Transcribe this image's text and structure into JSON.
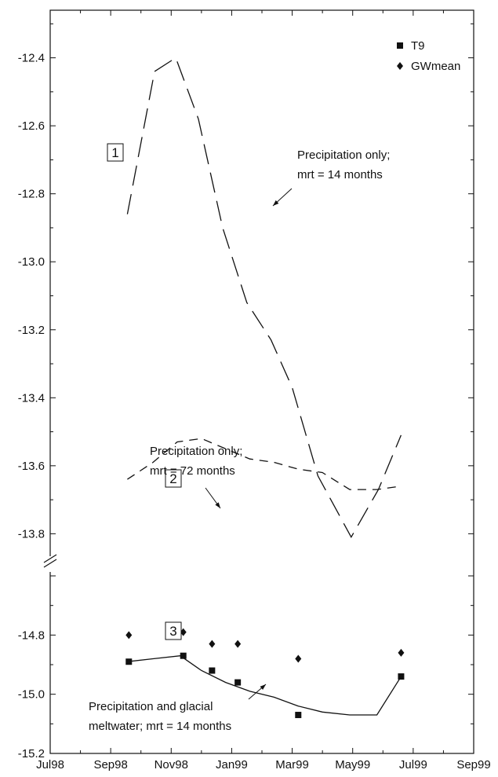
{
  "chart_data": {
    "type": "line",
    "xlabel": "",
    "ylabel": "",
    "grid": false,
    "legend_position": "top-right",
    "x_ticks": [
      "Jul98",
      "Sep98",
      "Nov98",
      "Jan99",
      "Mar99",
      "May99",
      "Jul99",
      "Sep99"
    ],
    "y_ticks_upper": [
      "-12.4",
      "-12.6",
      "-12.8",
      "-13.0",
      "-13.2",
      "-13.4",
      "-13.6",
      "-13.8"
    ],
    "y_ticks_lower": [
      "-14.8",
      "-15.0",
      "-15.2"
    ],
    "xlim_months": [
      0,
      14
    ],
    "ylim_upper": [
      -13.88,
      -12.26
    ],
    "ylim_lower": [
      -15.2,
      -14.6
    ],
    "axis_break_marker": "//",
    "legend": [
      {
        "label": "T9",
        "marker": "square"
      },
      {
        "label": "GWmean",
        "marker": "diamond"
      }
    ],
    "series": [
      {
        "box_label": "1",
        "style": "long-dash",
        "annotation_lines": [
          "Precipitation only;",
          "mrt = 14 months"
        ],
        "x": [
          2.55,
          3.45,
          4.15,
          4.9,
          5.7,
          6.5,
          7.3,
          8.0,
          8.85,
          9.95,
          10.85,
          11.6
        ],
        "y": [
          -12.86,
          -12.44,
          -12.4,
          -12.58,
          -12.9,
          -13.12,
          -13.23,
          -13.37,
          -13.63,
          -13.81,
          -13.67,
          -13.51
        ]
      },
      {
        "box_label": "2",
        "style": "short-dash",
        "annotation_lines": [
          "Precipitation only;",
          "mrt = 72 months"
        ],
        "x": [
          2.55,
          3.4,
          4.2,
          5.0,
          5.8,
          6.6,
          7.4,
          8.2,
          9.0,
          9.9,
          10.8,
          11.6
        ],
        "y": [
          -13.64,
          -13.59,
          -13.53,
          -13.52,
          -13.55,
          -13.58,
          -13.59,
          -13.61,
          -13.62,
          -13.67,
          -13.67,
          -13.66
        ]
      },
      {
        "box_label": "3",
        "style": "solid",
        "annotation_lines": [
          "Precipitation and glacial",
          "meltwater; mrt = 14 months"
        ],
        "x": [
          2.55,
          3.4,
          4.3,
          5.0,
          5.8,
          6.6,
          7.4,
          8.2,
          9.0,
          9.9,
          10.8,
          11.6
        ],
        "y": [
          -14.89,
          -14.88,
          -14.87,
          -14.92,
          -14.96,
          -14.99,
          -15.01,
          -15.04,
          -15.06,
          -15.07,
          -15.07,
          -14.94
        ]
      }
    ],
    "points": [
      {
        "name": "T9",
        "marker": "square",
        "x": [
          2.6,
          4.4,
          5.35,
          6.2,
          8.2,
          11.6
        ],
        "y": [
          -14.89,
          -14.87,
          -14.92,
          -14.96,
          -15.07,
          -14.94
        ]
      },
      {
        "name": "GWmean",
        "marker": "diamond",
        "x": [
          2.6,
          4.4,
          5.35,
          6.2,
          8.2,
          11.6
        ],
        "y": [
          -14.8,
          -14.79,
          -14.83,
          -14.83,
          -14.88,
          -14.86
        ]
      }
    ]
  }
}
